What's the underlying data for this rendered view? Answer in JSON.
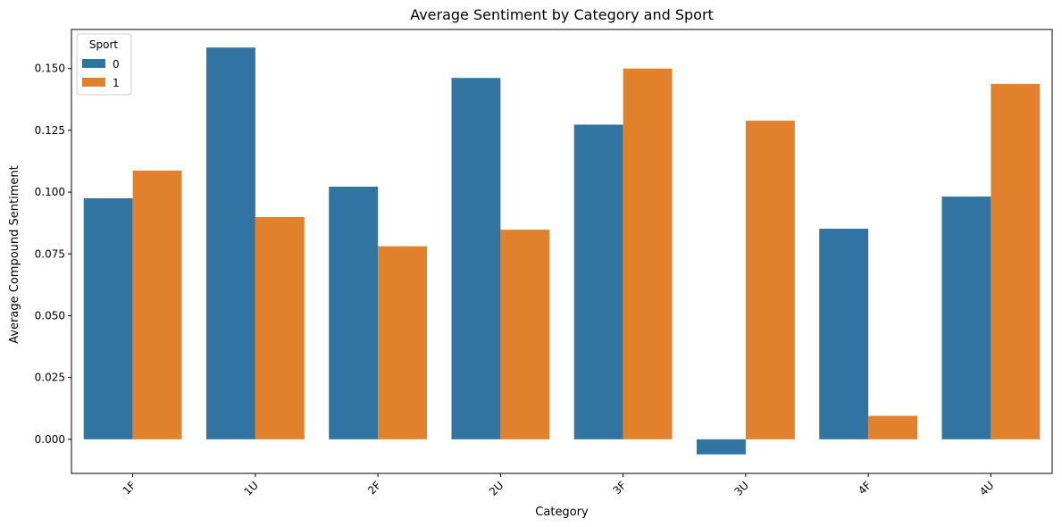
{
  "chart_data": {
    "type": "bar",
    "title": "Average Sentiment by Category and Sport",
    "xlabel": "Category",
    "ylabel": "Average Compound Sentiment",
    "categories": [
      "1F",
      "1U",
      "2F",
      "2U",
      "3F",
      "3U",
      "4F",
      "4U"
    ],
    "series": [
      {
        "name": "0",
        "color": "#3274a1",
        "values": [
          0.0975,
          0.1585,
          0.1022,
          0.1462,
          0.1273,
          -0.0061,
          0.0852,
          0.0982
        ]
      },
      {
        "name": "1",
        "color": "#e1812c",
        "values": [
          0.1087,
          0.0899,
          0.0781,
          0.0848,
          0.15,
          0.1289,
          0.0095,
          0.1438
        ]
      }
    ],
    "ylim": [
      -0.0138,
      0.1658
    ],
    "yticks": [
      0.0,
      0.025,
      0.05,
      0.075,
      0.1,
      0.125,
      0.15
    ],
    "ytick_labels": [
      "0.000",
      "0.025",
      "0.050",
      "0.075",
      "0.100",
      "0.125",
      "0.150"
    ],
    "grid": false,
    "legend": {
      "title": "Sport",
      "placement": "top-left"
    }
  }
}
